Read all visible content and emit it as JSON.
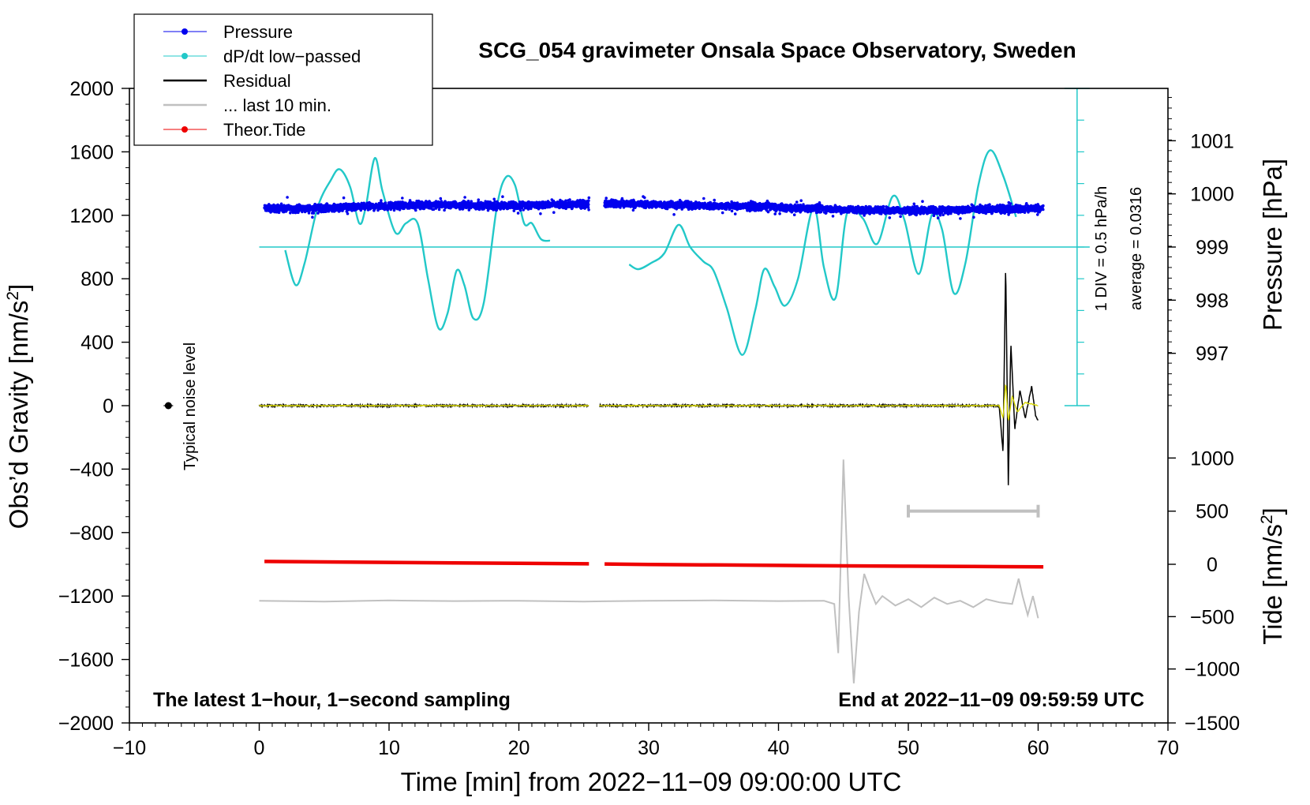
{
  "chart_data": {
    "type": "line",
    "title": "SCG_054 gravimeter Onsala Space Observatory, Sweden",
    "xlabel": "Time [min] from 2022−11−09 09:00:00 UTC",
    "ylabel": "Obs’d Gravity [nm/s²]",
    "ylabel_parts": {
      "main": "Obs’d Gravity [nm/s",
      "sup": "2",
      "end": "]"
    },
    "xlim": [
      -10,
      70
    ],
    "ylim": [
      -2000,
      2000
    ],
    "x_ticks": [
      -10,
      0,
      10,
      20,
      30,
      40,
      50,
      60,
      70
    ],
    "x_tick_labels": [
      "−10",
      "0",
      "10",
      "20",
      "30",
      "40",
      "50",
      "60",
      "70"
    ],
    "y_ticks": [
      -2000,
      -1600,
      -1200,
      -800,
      -400,
      0,
      400,
      800,
      1200,
      1600,
      2000
    ],
    "y_tick_labels": [
      "−2000",
      "−1600",
      "−1200",
      "−800",
      "−400",
      "0",
      "400",
      "800",
      "1200",
      "1600",
      "2000"
    ],
    "pressure_axis": {
      "label": "Pressure [hPa]",
      "ticks": [
        997,
        998,
        999,
        1000,
        1001
      ],
      "tick_labels": [
        "997",
        "998",
        "999",
        "1000",
        "1001"
      ],
      "gravity_equiv": {
        "997": 330,
        "998": 665,
        "999": 1000,
        "1000": 1335,
        "1001": 1670
      }
    },
    "tide_axis": {
      "label": "Tide [nm/s²]",
      "label_parts": {
        "main": "Tide [nm/s",
        "sup": "2",
        "end": "]"
      },
      "ticks": [
        -1500,
        -1000,
        -500,
        0,
        500,
        1000
      ],
      "tick_labels": [
        "−1500",
        "−1000",
        "−500",
        "0",
        "500",
        "1000"
      ],
      "gravity_equiv": {
        "-1500": -2000,
        "-1000": -1660,
        "-500": -1330,
        "0": -1000,
        "500": -665,
        "1000": -330
      }
    },
    "dpdt_scale": {
      "label": "1 DIV = 0.5 hPa/h",
      "average_label": "average = 0.0316",
      "x": 63,
      "range": [
        0,
        2000
      ],
      "baseline": 1000,
      "div_step": 200
    },
    "noise_label": "Typical noise level",
    "noise_point": {
      "x": -7,
      "y": 0
    },
    "last10_bar": {
      "x_start": 50,
      "x_end": 60,
      "y": -665
    },
    "notes": {
      "left": "The latest 1−hour, 1−second sampling",
      "right": "End at 2022−11−09 09:59:59 UTC"
    },
    "legend": [
      {
        "name": "Pressure",
        "color": "#0000ee",
        "marker": true
      },
      {
        "name": "dP/dt low−passed",
        "color": "#22c8c8",
        "marker": true
      },
      {
        "name": "Residual",
        "color": "#000000",
        "marker": false
      },
      {
        "name": "... last 10 min.",
        "color": "#c0c0c0",
        "marker": false
      },
      {
        "name": "Theor.Tide",
        "color": "#ee0000",
        "marker": true
      }
    ],
    "series": [
      {
        "name": "Pressure",
        "color": "#0000ee",
        "unit": "gravity-equivalent (999 hPa = 1000)",
        "segments": [
          {
            "x": [
              0.4,
              3,
              6,
              9,
              12,
              15,
              18,
              21,
              25.4
            ],
            "y": [
              1245,
              1240,
              1250,
              1255,
              1265,
              1265,
              1260,
              1265,
              1270
            ]
          },
          {
            "x": [
              26.6,
              30,
              34,
              38,
              42,
              46,
              50,
              54,
              58,
              60.4
            ],
            "y": [
              1275,
              1270,
              1260,
              1255,
              1245,
              1235,
              1230,
              1235,
              1240,
              1245
            ]
          }
        ]
      },
      {
        "name": "dP/dt low−passed",
        "color": "#22c8c8",
        "unit": "gravity-equivalent (0 hPa/h = 1000)",
        "segments": [
          {
            "x": [
              2,
              2.8,
              3.5,
              4.5,
              5.5,
              6.2,
              7,
              7.7,
              8.2,
              8.9,
              9.5,
              10.5,
              11.3,
              12.2,
              13,
              13.8,
              14.5,
              15.2,
              15.8,
              16.5,
              17.3,
              18.3,
              19,
              19.7,
              20.4,
              21,
              21.7,
              22.4
            ],
            "y": [
              980,
              760,
              900,
              1250,
              1420,
              1490,
              1380,
              1150,
              1250,
              1560,
              1350,
              1090,
              1150,
              1150,
              800,
              490,
              580,
              850,
              760,
              550,
              650,
              1250,
              1440,
              1390,
              1150,
              1150,
              1050,
              1040
            ]
          },
          {
            "x": [
              28.5,
              29.2,
              30.2,
              31.2,
              32.3,
              33.2,
              34.2,
              35,
              36,
              37.2,
              38.2,
              38.9,
              39.7,
              40.5,
              41.5,
              42.7,
              43.5,
              44.4,
              45.3,
              46.5,
              47.6,
              48.8,
              49.7,
              50.8,
              51.8,
              52.6,
              53.5,
              54.4,
              55.4,
              56.3,
              57.3,
              58.3
            ],
            "y": [
              890,
              860,
              900,
              960,
              1140,
              1000,
              910,
              850,
              620,
              320,
              600,
              860,
              750,
              630,
              800,
              1250,
              870,
              680,
              1220,
              1180,
              1020,
              1320,
              1170,
              830,
              1200,
              1110,
              710,
              900,
              1390,
              1610,
              1450,
              1190
            ]
          }
        ]
      },
      {
        "name": "Residual",
        "color": "#000000",
        "segments": [
          {
            "x": [
              0,
              25.4
            ],
            "y": [
              0,
              0
            ]
          },
          {
            "x": [
              26.2,
              57,
              57.3,
              57.5,
              57.7,
              57.9,
              58.2,
              58.6,
              59,
              59.5,
              59.8,
              60
            ],
            "y": [
              0,
              0,
              -300,
              900,
              -500,
              400,
              -150,
              100,
              -80,
              120,
              -60,
              -100
            ]
          }
        ]
      },
      {
        "name": "Residual (yellow overlay)",
        "color": "#d8d800",
        "segments": [
          {
            "x": [
              0,
              25.4
            ],
            "y": [
              0,
              0
            ]
          },
          {
            "x": [
              26.2,
              57,
              57.3,
              57.5,
              57.7,
              58,
              58.4,
              59,
              60
            ],
            "y": [
              0,
              0,
              -80,
              150,
              -100,
              60,
              -40,
              20,
              0
            ]
          }
        ]
      },
      {
        "name": "... last 10 min.",
        "color": "#c0c0c0",
        "segments": [
          {
            "x": [
              0,
              5,
              10,
              15,
              20,
              25,
              30,
              35,
              40,
              43.5,
              44.3,
              44.6,
              45.0,
              45.4,
              45.8,
              46.2,
              46.6,
              47,
              47.5,
              48,
              48.5,
              49,
              50,
              51,
              52,
              53,
              54,
              55,
              56,
              57,
              58,
              58.5,
              58.8,
              59.2,
              59.6,
              60
            ],
            "y": [
              -1230,
              -1235,
              -1228,
              -1232,
              -1230,
              -1235,
              -1230,
              -1228,
              -1232,
              -1230,
              -1250,
              -1560,
              -340,
              -1200,
              -1750,
              -1300,
              -1060,
              -1150,
              -1250,
              -1200,
              -1230,
              -1260,
              -1220,
              -1270,
              -1210,
              -1250,
              -1230,
              -1270,
              -1220,
              -1240,
              -1250,
              -1090,
              -1200,
              -1320,
              -1200,
              -1340
            ]
          }
        ]
      },
      {
        "name": "Theor.Tide",
        "color": "#ee0000",
        "unit": "gravity-equivalent (0 nm/s² tide = -1000)",
        "segments": [
          {
            "x": [
              0.4,
              5,
              10,
              15,
              20,
              25.4
            ],
            "y": [
              -982,
              -985,
              -988,
              -991,
              -994,
              -997
            ]
          },
          {
            "x": [
              26.6,
              30,
              35,
              40,
              45,
              50,
              55,
              60.4
            ],
            "y": [
              -998,
              -1001,
              -1004,
              -1007,
              -1010,
              -1012,
              -1014,
              -1016
            ]
          }
        ]
      }
    ]
  }
}
